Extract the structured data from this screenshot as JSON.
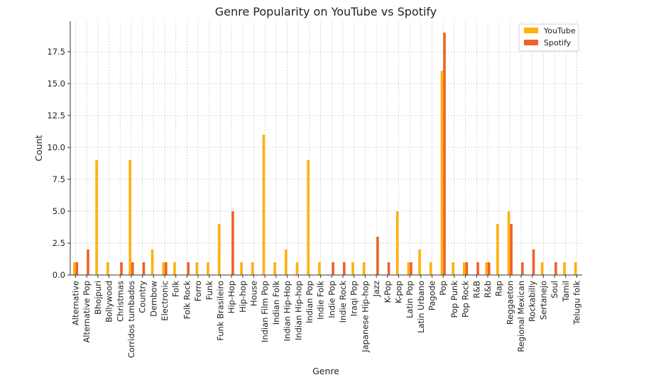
{
  "chart_data": {
    "type": "bar",
    "title": "Genre Popularity on YouTube vs Spotify",
    "xlabel": "Genre",
    "ylabel": "Count",
    "ylim": [
      0,
      20
    ],
    "yticks": [
      "0.0",
      "2.5",
      "5.0",
      "7.5",
      "10.0",
      "12.5",
      "15.0",
      "17.5"
    ],
    "grid": true,
    "legend_position": "top-right",
    "categories": [
      "Alternative",
      "Alternative Pop",
      "Bhojpuri",
      "Bollywood",
      "Christmas",
      "Corridos tumbados",
      "Country",
      "Dembow",
      "Electronic",
      "Folk",
      "Folk Rock",
      "Forro",
      "Funk",
      "Funk Brasileiro",
      "Hip-Hop",
      "Hip-hop",
      "House",
      "Indian Film Pop",
      "Indian Folk",
      "Indian Hip-Hop",
      "Indian Hip-hop",
      "Indian Pop",
      "Indie Folk",
      "Indie Pop",
      "Indie Rock",
      "Iraqi Pop",
      "Japanese Hip-hop",
      "Jazz",
      "K-Pop",
      "K-pop",
      "Latin Pop",
      "Latin Urbano",
      "Pagode",
      "Pop",
      "Pop Punk",
      "Pop Rock",
      "R&B",
      "R&b",
      "Rap",
      "Reggaeton",
      "Regional Mexican",
      "Rockabilly",
      "Sertanejo",
      "Soul",
      "Tamil",
      "Telugu folk"
    ],
    "series": [
      {
        "name": "YouTube",
        "color": "#FFB20F",
        "values": [
          1,
          0,
          9,
          1,
          0,
          9,
          0,
          2,
          1,
          1,
          0,
          1,
          1,
          4,
          0,
          1,
          1,
          11,
          1,
          2,
          1,
          9,
          1,
          0,
          0,
          1,
          1,
          0,
          0,
          5,
          1,
          2,
          1,
          16,
          1,
          1,
          0,
          1,
          4,
          5,
          0,
          0,
          1,
          0,
          1,
          1
        ]
      },
      {
        "name": "Spotify",
        "color": "#F0622A",
        "values": [
          1,
          2,
          0,
          0,
          1,
          1,
          1,
          0,
          1,
          0,
          1,
          0,
          0,
          0,
          5,
          0,
          0,
          0,
          0,
          0,
          0,
          0,
          0,
          1,
          1,
          0,
          0,
          3,
          1,
          0,
          1,
          0,
          0,
          19,
          0,
          1,
          1,
          1,
          0,
          4,
          1,
          2,
          0,
          1,
          0,
          0
        ]
      }
    ]
  }
}
